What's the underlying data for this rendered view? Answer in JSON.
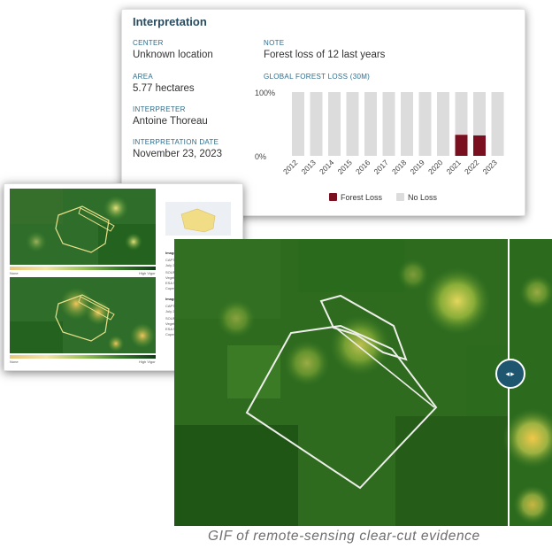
{
  "card": {
    "title": "Interpretation",
    "center_label": "CENTER",
    "center_value": "Unknown location",
    "area_label": "AREA",
    "area_value": "5.77 hectares",
    "interpreter_label": "INTERPRETER",
    "interpreter_value": "Antoine Thoreau",
    "date_label": "INTERPRETATION DATE",
    "date_value": "November 23, 2023",
    "note_label": "NOTE",
    "note_value": "Forest loss of 12 last years",
    "chart_label": "GLOBAL FOREST LOSS (30M)"
  },
  "chart_data": {
    "type": "bar",
    "categories": [
      "2012",
      "2013",
      "2014",
      "2015",
      "2016",
      "2017",
      "2018",
      "2019",
      "2020",
      "2021",
      "2022",
      "2023"
    ],
    "series": [
      {
        "name": "Forest Loss",
        "values": [
          0,
          0,
          0,
          0,
          0,
          0,
          0,
          0,
          0,
          33,
          32,
          0
        ],
        "color": "#7a0f1f"
      },
      {
        "name": "No Loss",
        "values": [
          100,
          100,
          100,
          100,
          100,
          100,
          100,
          100,
          100,
          67,
          68,
          100
        ],
        "color": "#dcdcdc"
      }
    ],
    "yticks": [
      "100%",
      "0%"
    ],
    "ylim": [
      0,
      100
    ],
    "stacked": true,
    "legend": [
      "Forest Loss",
      "No Loss"
    ],
    "legend_position": "bottom"
  },
  "report": {
    "legend_low": "None",
    "legend_high": "High Vigor",
    "top": {
      "title": "Image, top",
      "date_label": "CAPTURE DATE",
      "date_value": "July 24, 2019",
      "source_label": "SOURCE",
      "source_1": "Vegetation",
      "source_2": "ESA Sentinel-2A/B (10m)",
      "source_3": "Copernicus Sentinel data 2019"
    },
    "bottom": {
      "title": "Image, bottom",
      "date_label": "CAPTURE DATE",
      "date_value": "July 21, 2021",
      "source_label": "SOURCE",
      "source_1": "Vegetation",
      "source_2": "ESA Sentinel-2A/B (10m)",
      "source_3": "Copernicus Sentinel data 2021"
    }
  },
  "slider": {
    "arrows": "◂▸"
  },
  "caption": "GIF of remote-sensing clear-cut evidence",
  "colors": {
    "title": "#274b61",
    "label": "#2d6c8c",
    "loss": "#7a0f1f",
    "noloss": "#dcdcdc",
    "slider": "#1e5670"
  }
}
